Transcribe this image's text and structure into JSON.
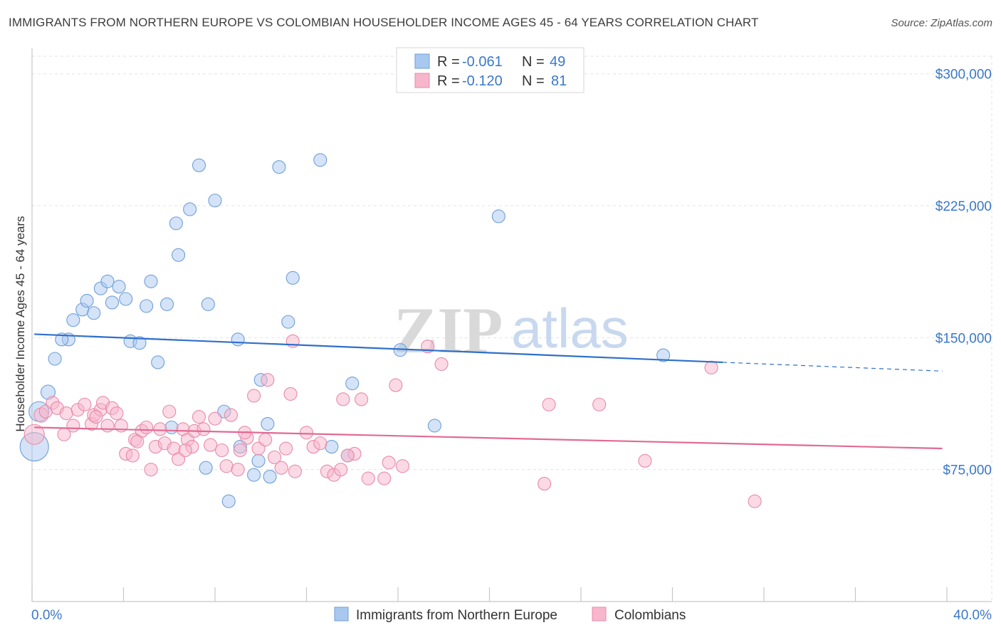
{
  "header": {
    "title": "IMMIGRANTS FROM NORTHERN EUROPE VS COLOMBIAN HOUSEHOLDER INCOME AGES 45 - 64 YEARS CORRELATION CHART",
    "source": "Source: ZipAtlas.com"
  },
  "watermark": {
    "zip": "ZIP",
    "atlas": "atlas"
  },
  "legend": {
    "rows": [
      {
        "r_label": "R =",
        "r_value": "-0.061",
        "n_label": "N =",
        "n_value": "49",
        "color": "#a9c8f0"
      },
      {
        "r_label": "R =",
        "r_value": "-0.120",
        "n_label": "N =",
        "n_value": "81",
        "color": "#f7b6cb"
      }
    ]
  },
  "bottom_legend": {
    "items": [
      {
        "label": "Immigrants from Northern Europe",
        "color": "#a9c8f0"
      },
      {
        "label": "Colombians",
        "color": "#f7b6cb"
      }
    ]
  },
  "chart_data": {
    "type": "scatter",
    "title": "IMMIGRANTS FROM NORTHERN EUROPE VS COLOMBIAN HOUSEHOLDER INCOME AGES 45 - 64 YEARS CORRELATION CHART",
    "xlabel": "",
    "ylabel": "Householder Income Ages 45 - 64 years",
    "xlim": [
      0,
      40
    ],
    "ylim": [
      0,
      310000
    ],
    "x_tick_labels": [
      "0.0%",
      "40.0%"
    ],
    "y_ticks": [
      75000,
      150000,
      225000,
      300000
    ],
    "y_tick_labels": [
      "$75,000",
      "$150,000",
      "$225,000",
      "$300,000"
    ],
    "grid": true,
    "legend_position": "top-center",
    "series": [
      {
        "name": "Immigrants from Northern Europe",
        "color": "#a9c8f0",
        "stroke": "#6f9fd8",
        "line_color": "#2f6fca",
        "trend": {
          "x0": 0.1,
          "y0": 152000,
          "x1": 30.2,
          "y1": 136000,
          "x_dash_end": 39.8,
          "y_dash_end": 131000
        },
        "points": [
          [
            0.3,
            108000,
            14
          ],
          [
            0.1,
            88000,
            20
          ],
          [
            0.7,
            119000,
            10
          ],
          [
            1.0,
            138000,
            9
          ],
          [
            1.6,
            149000,
            9
          ],
          [
            1.3,
            149000,
            9
          ],
          [
            1.8,
            160000,
            9
          ],
          [
            2.2,
            166000,
            9
          ],
          [
            2.4,
            171000,
            9
          ],
          [
            2.7,
            164000,
            9
          ],
          [
            3.0,
            178000,
            9
          ],
          [
            3.3,
            182000,
            9
          ],
          [
            3.5,
            170000,
            9
          ],
          [
            3.8,
            179000,
            9
          ],
          [
            4.1,
            172000,
            9
          ],
          [
            4.3,
            148000,
            9
          ],
          [
            4.7,
            147000,
            9
          ],
          [
            5.0,
            168000,
            9
          ],
          [
            5.2,
            182000,
            9
          ],
          [
            5.5,
            136000,
            9
          ],
          [
            5.9,
            169000,
            9
          ],
          [
            6.3,
            215000,
            9
          ],
          [
            6.4,
            197000,
            9
          ],
          [
            6.9,
            223000,
            9
          ],
          [
            7.3,
            248000,
            9
          ],
          [
            8.0,
            228000,
            9
          ],
          [
            7.7,
            169000,
            9
          ],
          [
            9.0,
            149000,
            9
          ],
          [
            9.1,
            88000,
            9
          ],
          [
            9.7,
            72000,
            9
          ],
          [
            10.0,
            126000,
            9
          ],
          [
            10.3,
            101000,
            9
          ],
          [
            10.4,
            71000,
            9
          ],
          [
            10.8,
            247000,
            9
          ],
          [
            11.2,
            159000,
            9
          ],
          [
            11.4,
            184000,
            9
          ],
          [
            12.6,
            251000,
            9
          ],
          [
            13.1,
            88000,
            9
          ],
          [
            14.0,
            124000,
            9
          ],
          [
            16.1,
            143000,
            9
          ],
          [
            17.6,
            100000,
            9
          ],
          [
            20.4,
            219000,
            9
          ],
          [
            27.6,
            140000,
            9
          ],
          [
            6.1,
            99000,
            9
          ],
          [
            7.6,
            76000,
            9
          ],
          [
            8.4,
            108000,
            9
          ],
          [
            13.8,
            83000,
            9
          ],
          [
            8.6,
            57000,
            9
          ],
          [
            9.9,
            80000,
            9
          ]
        ]
      },
      {
        "name": "Colombians",
        "color": "#f7b6cb",
        "stroke": "#e88aa8",
        "line_color": "#e26a93",
        "trend": {
          "x0": 0.1,
          "y0": 99000,
          "x1": 39.8,
          "y1": 87000
        },
        "points": [
          [
            0.1,
            95000,
            14
          ],
          [
            0.4,
            106000,
            10
          ],
          [
            0.6,
            108000,
            9
          ],
          [
            0.9,
            113000,
            9
          ],
          [
            1.1,
            110000,
            9
          ],
          [
            1.4,
            95000,
            9
          ],
          [
            1.5,
            107000,
            9
          ],
          [
            1.8,
            100000,
            9
          ],
          [
            2.0,
            109000,
            9
          ],
          [
            2.3,
            112000,
            9
          ],
          [
            2.6,
            101000,
            9
          ],
          [
            2.7,
            106000,
            9
          ],
          [
            3.0,
            109000,
            9
          ],
          [
            3.1,
            113000,
            9
          ],
          [
            3.3,
            100000,
            9
          ],
          [
            3.5,
            110000,
            9
          ],
          [
            3.7,
            107000,
            9
          ],
          [
            3.9,
            100000,
            9
          ],
          [
            4.1,
            84000,
            9
          ],
          [
            4.4,
            83000,
            9
          ],
          [
            4.5,
            92000,
            9
          ],
          [
            4.8,
            97000,
            9
          ],
          [
            5.0,
            99000,
            9
          ],
          [
            5.2,
            75000,
            9
          ],
          [
            5.4,
            88000,
            9
          ],
          [
            5.6,
            98000,
            9
          ],
          [
            5.8,
            90000,
            9
          ],
          [
            6.0,
            108000,
            9
          ],
          [
            6.2,
            87000,
            9
          ],
          [
            6.4,
            81000,
            9
          ],
          [
            6.6,
            98000,
            9
          ],
          [
            6.8,
            92000,
            9
          ],
          [
            7.0,
            88000,
            9
          ],
          [
            7.1,
            97000,
            9
          ],
          [
            7.3,
            105000,
            9
          ],
          [
            7.5,
            98000,
            9
          ],
          [
            7.8,
            89000,
            9
          ],
          [
            8.0,
            104000,
            9
          ],
          [
            8.3,
            86000,
            9
          ],
          [
            8.5,
            77000,
            9
          ],
          [
            8.7,
            106000,
            9
          ],
          [
            9.0,
            75000,
            9
          ],
          [
            9.1,
            86000,
            9
          ],
          [
            9.4,
            93000,
            9
          ],
          [
            9.7,
            117000,
            9
          ],
          [
            9.9,
            87000,
            9
          ],
          [
            10.2,
            92000,
            9
          ],
          [
            10.3,
            126000,
            9
          ],
          [
            10.6,
            82000,
            9
          ],
          [
            10.9,
            76000,
            9
          ],
          [
            11.1,
            87000,
            9
          ],
          [
            11.3,
            118000,
            9
          ],
          [
            11.5,
            74000,
            9
          ],
          [
            12.0,
            96000,
            9
          ],
          [
            12.3,
            88000,
            9
          ],
          [
            12.6,
            90000,
            9
          ],
          [
            12.9,
            74000,
            9
          ],
          [
            13.2,
            72000,
            9
          ],
          [
            13.5,
            75000,
            9
          ],
          [
            13.6,
            115000,
            9
          ],
          [
            14.1,
            84000,
            9
          ],
          [
            14.4,
            115000,
            9
          ],
          [
            14.7,
            70000,
            9
          ],
          [
            15.4,
            70000,
            9
          ],
          [
            15.6,
            79000,
            9
          ],
          [
            15.9,
            123000,
            9
          ],
          [
            16.2,
            77000,
            9
          ],
          [
            17.3,
            145000,
            9
          ],
          [
            17.9,
            135000,
            9
          ],
          [
            11.4,
            148000,
            9
          ],
          [
            22.6,
            112000,
            9
          ],
          [
            24.8,
            112000,
            9
          ],
          [
            22.4,
            67000,
            9
          ],
          [
            26.8,
            80000,
            9
          ],
          [
            29.7,
            133000,
            9
          ],
          [
            31.6,
            57000,
            9
          ],
          [
            9.3,
            96000,
            9
          ],
          [
            6.7,
            86000,
            9
          ],
          [
            4.6,
            91000,
            9
          ],
          [
            2.8,
            105000,
            9
          ],
          [
            13.8,
            83000,
            9
          ]
        ]
      }
    ]
  }
}
